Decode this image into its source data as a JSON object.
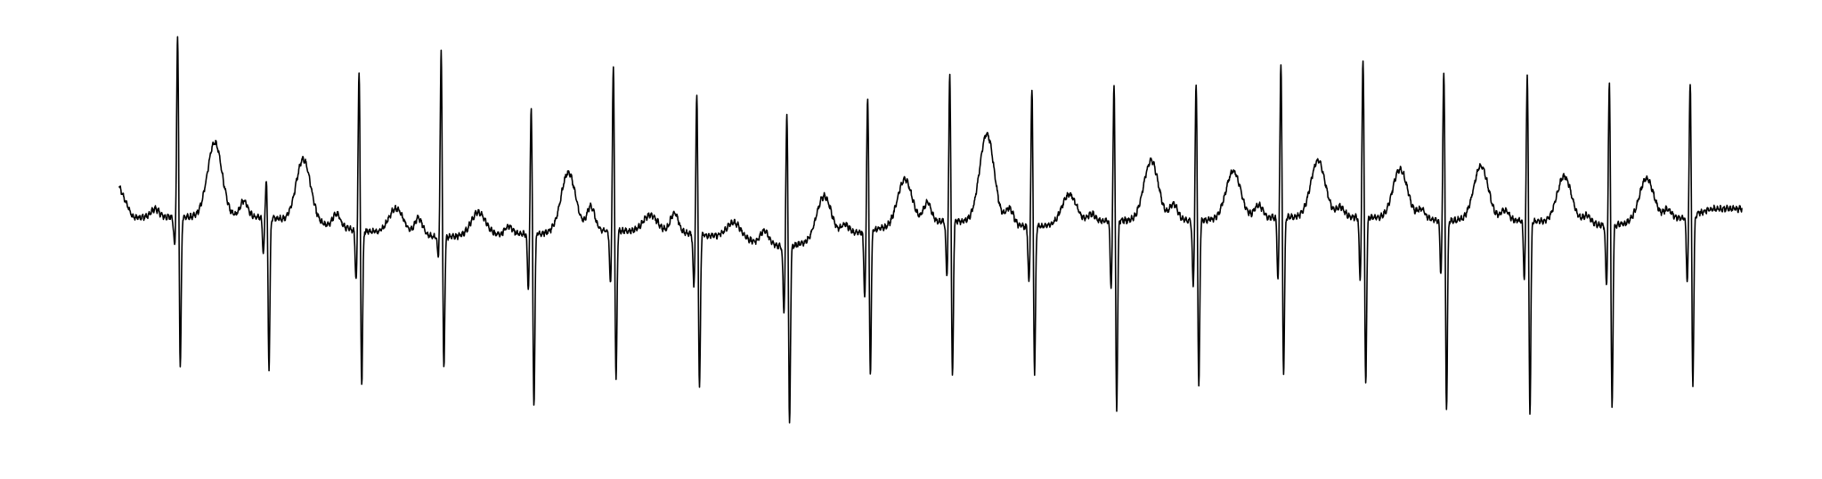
{
  "chart_data": {
    "type": "line",
    "title": "",
    "xlabel": "",
    "ylabel": "",
    "grid": false,
    "legend": "none",
    "axes_visible": false,
    "xlim": [
      0,
      12.25
    ],
    "ylim": [
      -1.45,
      1.05
    ],
    "line_color": "#000000",
    "background_color": "#ffffff",
    "signal": "ecg",
    "start_level": 0.08,
    "end_level": -0.05,
    "beats": [
      {
        "t": 0.44,
        "r": 1.0,
        "s": -1.02,
        "q": -0.18,
        "p": 0.05,
        "tw": 0.45,
        "bl": -0.1
      },
      {
        "t": 1.11,
        "r": 0.14,
        "s": -1.01,
        "q": -0.22,
        "p": 0.1,
        "tw": 0.38,
        "bl": -0.1
      },
      {
        "t": 1.81,
        "r": 0.8,
        "s": -1.12,
        "q": -0.3,
        "p": 0.08,
        "tw": 0.15,
        "bl": -0.18
      },
      {
        "t": 2.43,
        "r": 0.92,
        "s": -1.03,
        "q": -0.12,
        "p": 0.1,
        "tw": 0.14,
        "bl": -0.22
      },
      {
        "t": 3.11,
        "r": 0.58,
        "s": -1.25,
        "q": -0.32,
        "p": 0.05,
        "tw": 0.36,
        "bl": -0.2
      },
      {
        "t": 3.73,
        "r": 0.81,
        "s": -1.1,
        "q": -0.33,
        "p": 0.15,
        "tw": 0.1,
        "bl": -0.18
      },
      {
        "t": 4.36,
        "r": 0.64,
        "s": -1.15,
        "q": -0.32,
        "p": 0.12,
        "tw": 0.1,
        "bl": -0.2
      },
      {
        "t": 5.04,
        "r": 0.55,
        "s": -1.36,
        "q": -0.39,
        "p": 0.08,
        "tw": 0.26,
        "bl": -0.28
      },
      {
        "t": 5.65,
        "r": 0.65,
        "s": -1.06,
        "q": -0.4,
        "p": 0.06,
        "tw": 0.28,
        "bl": -0.18
      },
      {
        "t": 6.27,
        "r": 0.77,
        "s": -1.08,
        "q": -0.33,
        "p": 0.12,
        "tw": 0.54,
        "bl": -0.12
      },
      {
        "t": 6.89,
        "r": 0.68,
        "s": -1.06,
        "q": -0.34,
        "p": 0.1,
        "tw": 0.18,
        "bl": -0.16
      },
      {
        "t": 7.51,
        "r": 0.72,
        "s": -1.28,
        "q": -0.4,
        "p": 0.05,
        "tw": 0.36,
        "bl": -0.12
      },
      {
        "t": 8.13,
        "r": 0.72,
        "s": -1.14,
        "q": -0.4,
        "p": 0.1,
        "tw": 0.29,
        "bl": -0.12
      },
      {
        "t": 8.77,
        "r": 0.85,
        "s": -1.06,
        "q": -0.37,
        "p": 0.08,
        "tw": 0.34,
        "bl": -0.1
      },
      {
        "t": 9.39,
        "r": 0.87,
        "s": -1.12,
        "q": -0.37,
        "p": 0.06,
        "tw": 0.3,
        "bl": -0.1
      },
      {
        "t": 10.0,
        "r": 0.8,
        "s": -1.27,
        "q": -0.32,
        "p": 0.06,
        "tw": 0.33,
        "bl": -0.12
      },
      {
        "t": 10.63,
        "r": 0.78,
        "s": -1.29,
        "q": -0.35,
        "p": 0.06,
        "tw": 0.28,
        "bl": -0.12
      },
      {
        "t": 11.25,
        "r": 0.73,
        "s": -1.27,
        "q": -0.36,
        "p": 0.05,
        "tw": 0.26,
        "bl": -0.15
      },
      {
        "t": 11.86,
        "r": 0.74,
        "s": -1.13,
        "q": -0.38,
        "p": 0.06,
        "tw": 0.0,
        "bl": -0.1
      }
    ]
  }
}
